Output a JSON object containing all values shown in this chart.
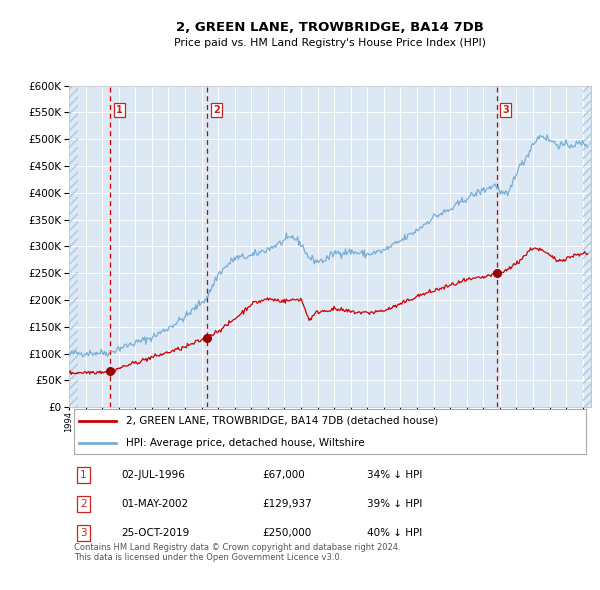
{
  "title": "2, GREEN LANE, TROWBRIDGE, BA14 7DB",
  "subtitle": "Price paid vs. HM Land Registry's House Price Index (HPI)",
  "legend_label_red": "2, GREEN LANE, TROWBRIDGE, BA14 7DB (detached house)",
  "legend_label_blue": "HPI: Average price, detached house, Wiltshire",
  "transaction_labels": [
    {
      "num": 1,
      "date": "02-JUL-1996",
      "price": "£67,000",
      "pct": "34% ↓ HPI"
    },
    {
      "num": 2,
      "date": "01-MAY-2002",
      "price": "£129,937",
      "pct": "39% ↓ HPI"
    },
    {
      "num": 3,
      "date": "25-OCT-2019",
      "price": "£250,000",
      "pct": "40% ↓ HPI"
    }
  ],
  "transaction_years": [
    1996.5,
    2002.33,
    2019.81
  ],
  "transaction_prices": [
    67000,
    129937,
    250000
  ],
  "footer": "Contains HM Land Registry data © Crown copyright and database right 2024.\nThis data is licensed under the Open Government Licence v3.0.",
  "bg_color": "#dce9f5",
  "plot_bg_color": "#dce9f5",
  "grid_color": "#ffffff",
  "red_line_color": "#cc0000",
  "blue_line_color": "#7aadd4",
  "marker_color": "#990000",
  "dashed_color": "#cc0000",
  "box_color": "#cc2222",
  "ylim": [
    0,
    600000
  ],
  "yticks": [
    0,
    50000,
    100000,
    150000,
    200000,
    250000,
    300000,
    350000,
    400000,
    450000,
    500000,
    550000,
    600000
  ],
  "xmin": 1994,
  "xmax": 2025.5
}
